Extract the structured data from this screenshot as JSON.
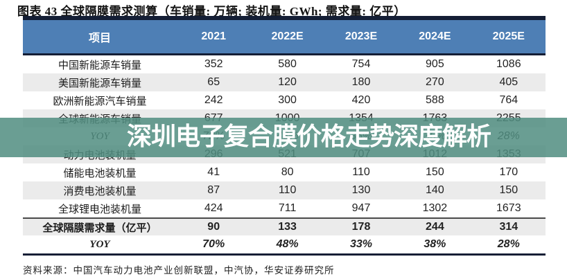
{
  "title": "图表 43 全球隔膜需求测算（车销量: 万辆; 装机量: GWh; 需求量: 亿平）",
  "watermark": {
    "text": "深圳电子复合膜价格走势深度解析"
  },
  "footer": {
    "source": "资料来源：中国汽车动力电池产业创新联盟，中汽协，华安证券研究所"
  },
  "colors": {
    "header_bg": "#4e7fb5",
    "header_text": "#ffffff",
    "dark_border": "#141e35",
    "stripe_row_bg": "#ebebeb",
    "watermark_band": "rgba(80,141,128,0.85)",
    "watermark_text": "#ffffff"
  },
  "chart_data": {
    "type": "table",
    "columns": [
      "项目",
      "2021",
      "2022E",
      "2023E",
      "2024E",
      "2025E"
    ],
    "rows": [
      {
        "label": "中国新能源车销量",
        "values": [
          "352",
          "580",
          "754",
          "905",
          "1086"
        ]
      },
      {
        "label": "美国新能源车销量",
        "values": [
          "65",
          "120",
          "180",
          "270",
          "405"
        ]
      },
      {
        "label": "欧洲新能源汽车销量",
        "values": [
          "242",
          "300",
          "420",
          "588",
          "764"
        ]
      },
      {
        "label": "全球新能源车销量",
        "values": [
          "677",
          "1000",
          "1354",
          "1763",
          "2255"
        ]
      },
      {
        "label": "YOY",
        "values": [
          "72%",
          "48%",
          "35%",
          "30%",
          "28%"
        ]
      },
      {
        "label": "动力电池装机量",
        "values": [
          "296",
          "521",
          "707",
          "1012",
          "1353"
        ]
      },
      {
        "label": "储能电池装机量",
        "values": [
          "41",
          "80",
          "110",
          "150",
          "170"
        ]
      },
      {
        "label": "消费电池装机量",
        "values": [
          "87",
          "110",
          "130",
          "140",
          "150"
        ]
      },
      {
        "label": "全球锂电池装机量",
        "values": [
          "424",
          "711",
          "947",
          "1302",
          "1673"
        ]
      },
      {
        "label": "全球隔膜需求量（亿平）",
        "values": [
          "90",
          "133",
          "178",
          "244",
          "314"
        ]
      },
      {
        "label": "YOY",
        "values": [
          "70%",
          "48%",
          "33%",
          "38%",
          "28%"
        ]
      }
    ]
  }
}
